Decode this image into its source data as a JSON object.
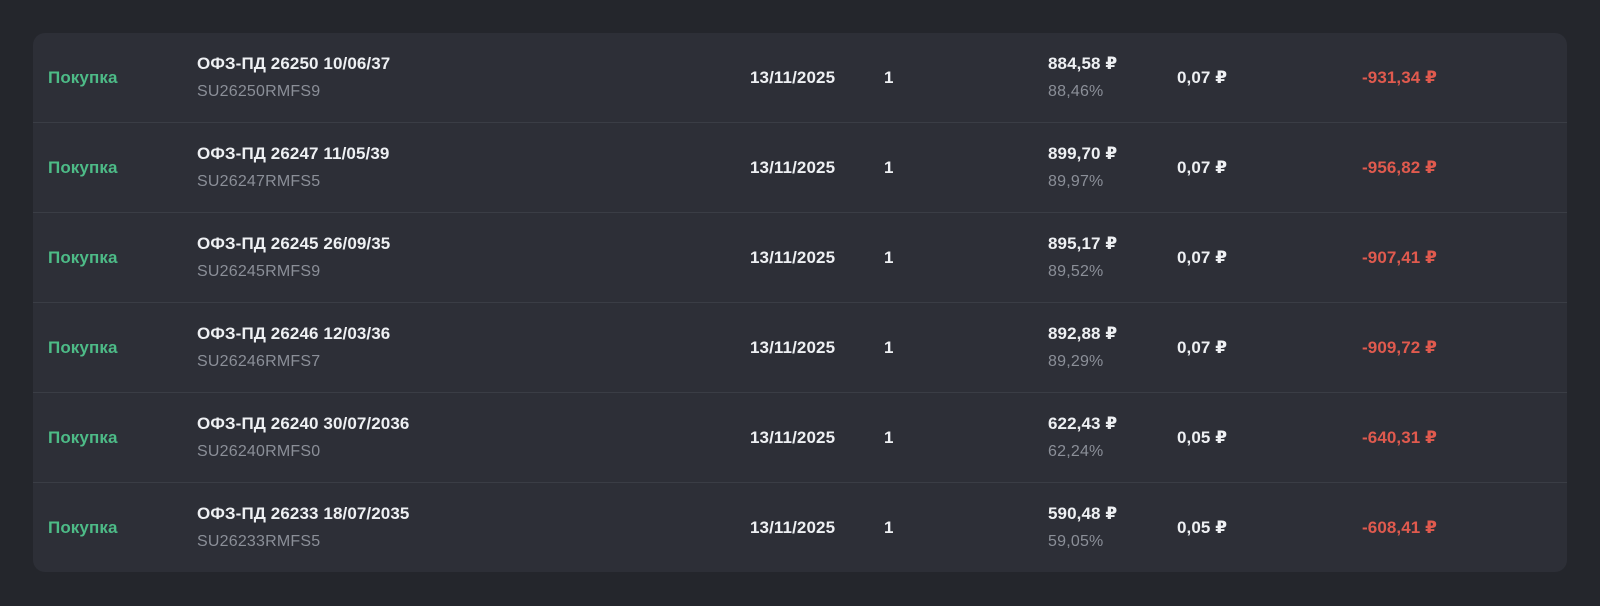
{
  "colors": {
    "page_bg": "#24262c",
    "card_bg": "#2d2f37",
    "divider": "#3a3d45",
    "text_primary": "#eef0f3",
    "text_secondary": "#8b8f98",
    "buy_green": "#4dbb87",
    "negative_red": "#e05a4e"
  },
  "table": {
    "columns": [
      "side",
      "instrument",
      "date",
      "quantity",
      "price",
      "fee",
      "total"
    ]
  },
  "rows": [
    {
      "side": "Покупка",
      "name": "ОФЗ-ПД 26250 10/06/37",
      "ticker": "SU26250RMFS9",
      "date": "13/11/2025",
      "quantity": "1",
      "price": "884,58 ₽",
      "price_percent": "88,46%",
      "fee": "0,07 ₽",
      "total": "-931,34 ₽"
    },
    {
      "side": "Покупка",
      "name": "ОФЗ-ПД 26247 11/05/39",
      "ticker": "SU26247RMFS5",
      "date": "13/11/2025",
      "quantity": "1",
      "price": "899,70 ₽",
      "price_percent": "89,97%",
      "fee": "0,07 ₽",
      "total": "-956,82 ₽"
    },
    {
      "side": "Покупка",
      "name": "ОФЗ-ПД 26245 26/09/35",
      "ticker": "SU26245RMFS9",
      "date": "13/11/2025",
      "quantity": "1",
      "price": "895,17 ₽",
      "price_percent": "89,52%",
      "fee": "0,07 ₽",
      "total": "-907,41 ₽"
    },
    {
      "side": "Покупка",
      "name": "ОФЗ-ПД 26246 12/03/36",
      "ticker": "SU26246RMFS7",
      "date": "13/11/2025",
      "quantity": "1",
      "price": "892,88 ₽",
      "price_percent": "89,29%",
      "fee": "0,07 ₽",
      "total": "-909,72 ₽"
    },
    {
      "side": "Покупка",
      "name": "ОФЗ-ПД 26240 30/07/2036",
      "ticker": "SU26240RMFS0",
      "date": "13/11/2025",
      "quantity": "1",
      "price": "622,43 ₽",
      "price_percent": "62,24%",
      "fee": "0,05 ₽",
      "total": "-640,31 ₽"
    },
    {
      "side": "Покупка",
      "name": "ОФЗ-ПД 26233 18/07/2035",
      "ticker": "SU26233RMFS5",
      "date": "13/11/2025",
      "quantity": "1",
      "price": "590,48 ₽",
      "price_percent": "59,05%",
      "fee": "0,05 ₽",
      "total": "-608,41 ₽"
    }
  ]
}
